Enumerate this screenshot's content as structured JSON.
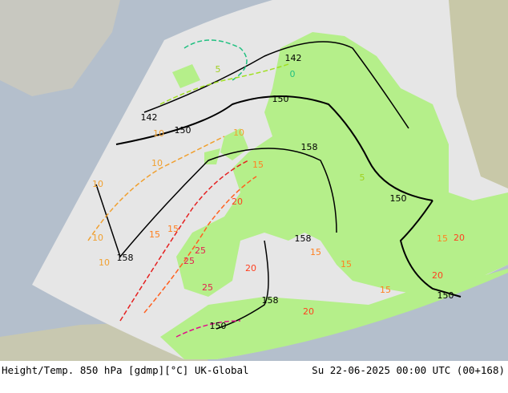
{
  "footer": {
    "title": "Height/Temp. 850 hPa [gdmp][°C] UK-Global",
    "datetime": "Su 22-06-2025 00:00 UTC (00+168)"
  },
  "height_labels": [
    "142",
    "142",
    "150",
    "150",
    "158",
    "150",
    "158",
    "158",
    "158",
    "150",
    "150"
  ],
  "temp_labels": [
    "10",
    "10",
    "10",
    "10",
    "10",
    "15",
    "15",
    "15",
    "20",
    "20",
    "25",
    "25",
    "25",
    "20",
    "15",
    "15",
    "20",
    "5",
    "0",
    "5",
    "20",
    "15",
    "10",
    "15"
  ]
}
